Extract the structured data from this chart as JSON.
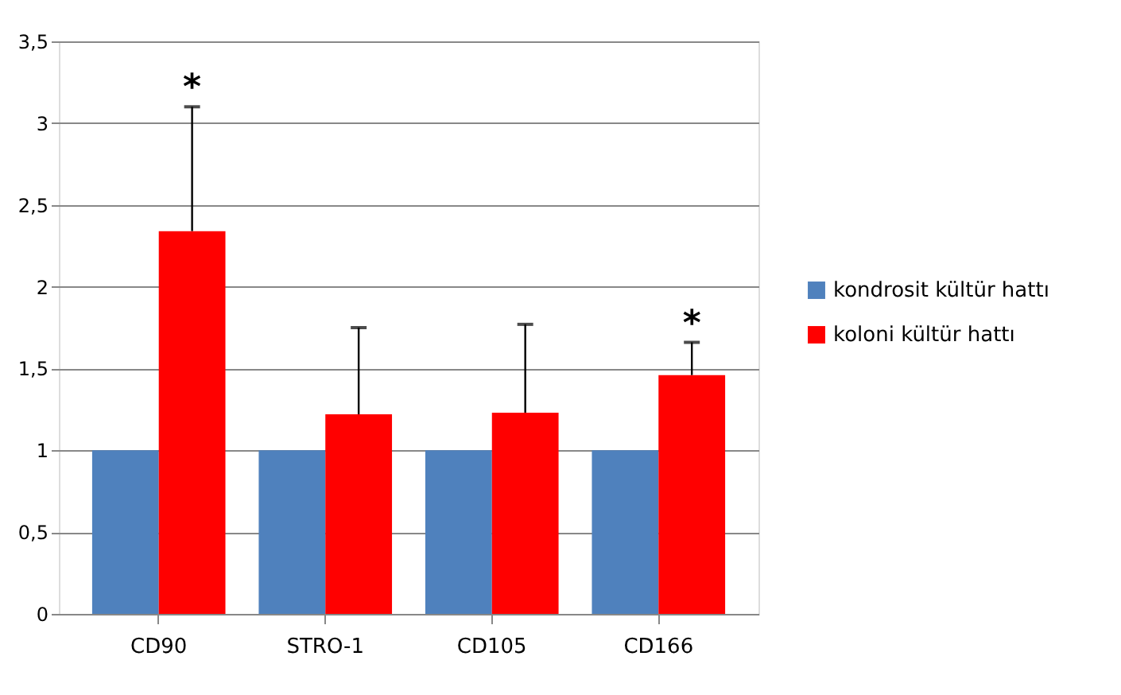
{
  "chart_data": {
    "type": "bar",
    "categories": [
      "CD90",
      "STRO-1",
      "CD105",
      "CD166"
    ],
    "series": [
      {
        "name": "kondrosit kültür hattı",
        "color": "#4f81bd",
        "values": [
          1,
          1,
          1,
          1
        ]
      },
      {
        "name": "koloni kültür hattı",
        "color": "#ff0000",
        "values": [
          2.34,
          1.22,
          1.23,
          1.46
        ],
        "errors": [
          [
            2.34,
            3.1
          ],
          [
            1.22,
            1.75
          ],
          [
            1.23,
            1.77
          ],
          [
            1.46,
            1.66
          ]
        ]
      }
    ],
    "ylim": [
      0,
      3.5
    ],
    "yticks": [
      0,
      {
        "value": 0.5,
        "label": "0,5"
      },
      1,
      {
        "value": 1.5,
        "label": "1,5"
      },
      2,
      {
        "value": 2.5,
        "label": "2,5"
      },
      3,
      {
        "value": 3.5,
        "label": "3,5"
      }
    ],
    "grid": "y",
    "legend": "right",
    "annotations": [
      "*",
      "*"
    ]
  }
}
